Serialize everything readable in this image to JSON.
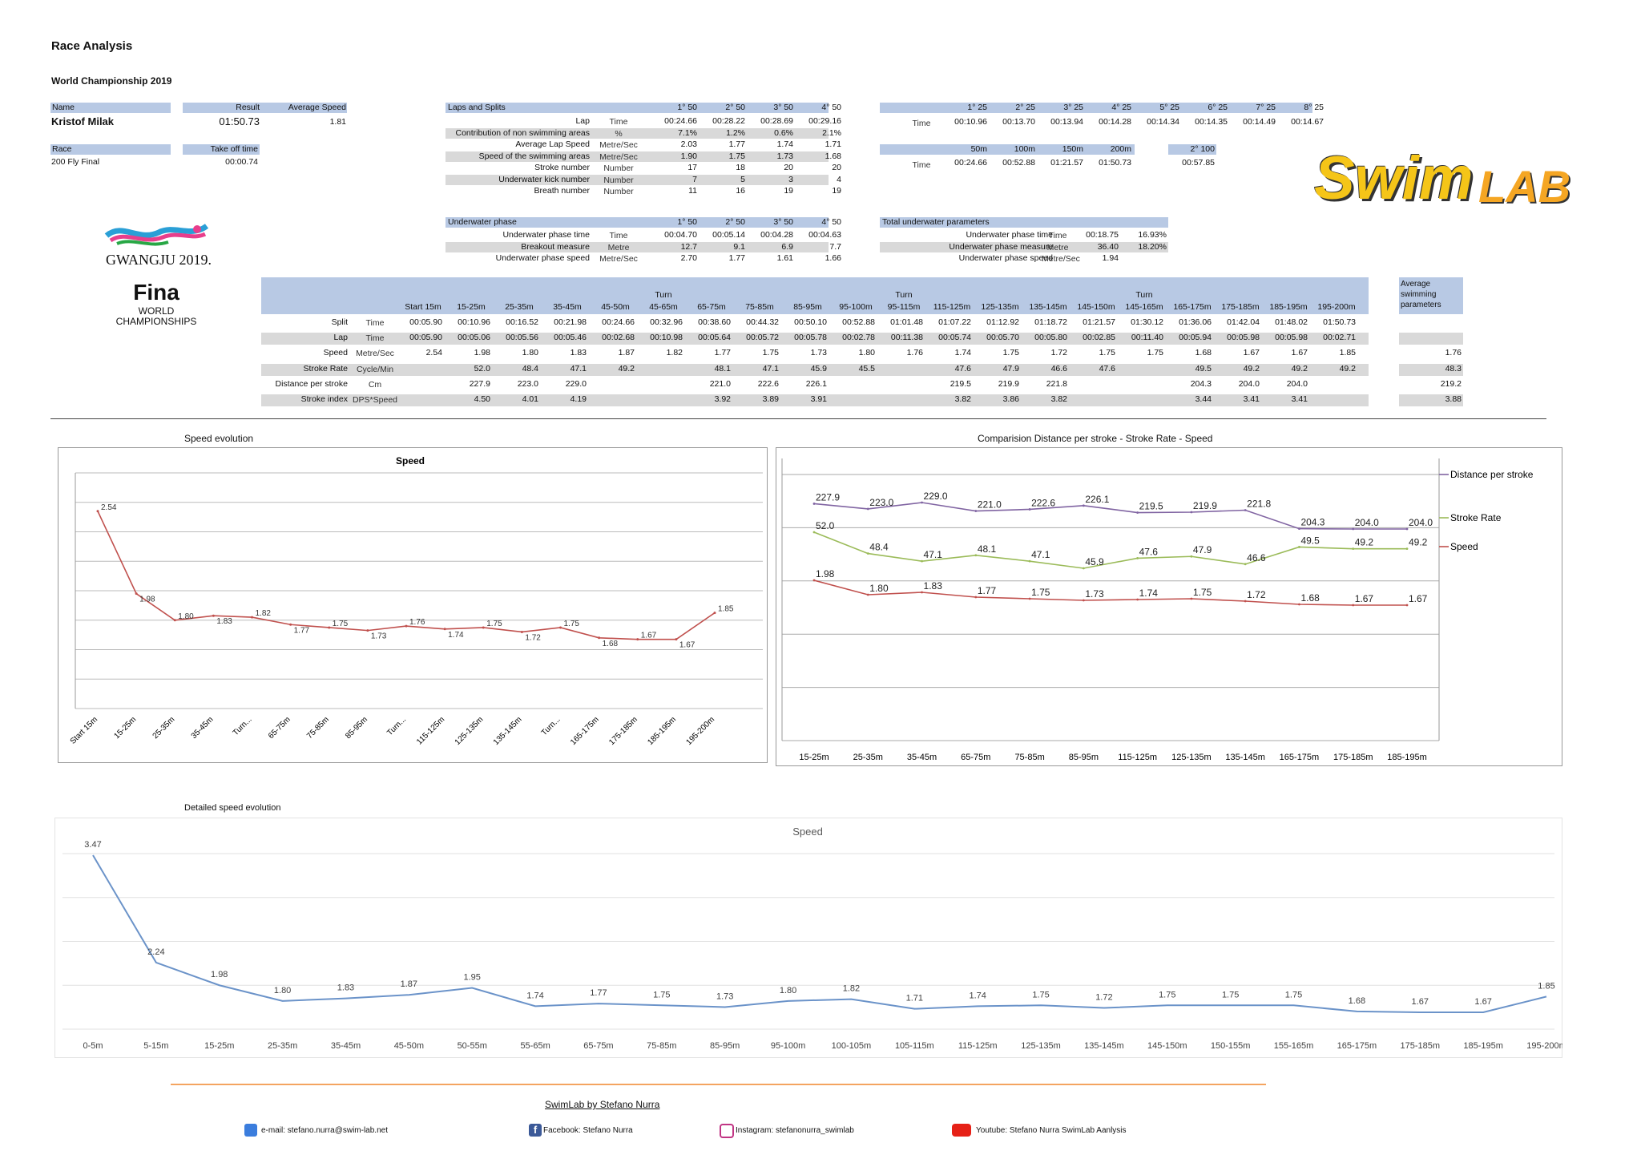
{
  "title": "Race Analysis",
  "subtitle": "World Championship 2019",
  "info": {
    "name_label": "Name",
    "name": "Kristof Milak",
    "result_label": "Result",
    "result": "01:50.73",
    "avg_speed_label": "Average Speed",
    "avg_speed": "1.81",
    "race_label": "Race",
    "race": "200 Fly Final",
    "takeoff_label": "Take off time",
    "takeoff": "00:00.74"
  },
  "laps": {
    "header": "Laps and Splits",
    "cols": [
      "1° 50",
      "2° 50",
      "3° 50",
      "4° 50"
    ],
    "rows": [
      {
        "label": "Lap",
        "unit": "Time",
        "values": [
          "00:24.66",
          "00:28.22",
          "00:28.69",
          "00:29.16"
        ],
        "shade": false
      },
      {
        "label": "Contribution of non swimming areas",
        "unit": "%",
        "values": [
          "7.1%",
          "1.2%",
          "0.6%",
          "2.1%"
        ],
        "shade": true
      },
      {
        "label": "Average Lap Speed",
        "unit": "Metre/Sec",
        "values": [
          "2.03",
          "1.77",
          "1.74",
          "1.71"
        ],
        "shade": false
      },
      {
        "label": "Speed of the swimming areas",
        "unit": "Metre/Sec",
        "values": [
          "1.90",
          "1.75",
          "1.73",
          "1.68"
        ],
        "shade": true
      },
      {
        "label": "Stroke number",
        "unit": "Number",
        "values": [
          "17",
          "18",
          "20",
          "20"
        ],
        "shade": false
      },
      {
        "label": "Underwater kick number",
        "unit": "Number",
        "values": [
          "7",
          "5",
          "3",
          "4"
        ],
        "shade": true
      },
      {
        "label": "Breath number",
        "unit": "Number",
        "values": [
          "11",
          "16",
          "19",
          "19"
        ],
        "shade": false
      }
    ]
  },
  "splits25": {
    "cols": [
      "1° 25",
      "2° 25",
      "3° 25",
      "4° 25",
      "5° 25",
      "6° 25",
      "7° 25",
      "8° 25"
    ],
    "unit": "Time",
    "values": [
      "00:10.96",
      "00:13.70",
      "00:13.94",
      "00:14.28",
      "00:14.34",
      "00:14.35",
      "00:14.49",
      "00:14.67"
    ]
  },
  "splits50": {
    "cols": [
      "50m",
      "100m",
      "150m",
      "200m"
    ],
    "unit": "Time",
    "values": [
      "00:24.66",
      "00:52.88",
      "01:21.57",
      "01:50.73"
    ],
    "second100_label": "2° 100",
    "second100": "00:57.85"
  },
  "underwater": {
    "header": "Underwater phase",
    "cols": [
      "1° 50",
      "2° 50",
      "3° 50",
      "4° 50"
    ],
    "rows": [
      {
        "label": "Underwater phase time",
        "unit": "Time",
        "values": [
          "00:04.70",
          "00:05.14",
          "00:04.28",
          "00:04.63"
        ],
        "shade": false
      },
      {
        "label": "Breakout measure",
        "unit": "Metre",
        "values": [
          "12.7",
          "9.1",
          "6.9",
          "7.7"
        ],
        "shade": true
      },
      {
        "label": "Underwater phase speed",
        "unit": "Metre/Sec",
        "values": [
          "2.70",
          "1.77",
          "1.61",
          "1.66"
        ],
        "shade": false
      }
    ]
  },
  "total_underwater": {
    "header": "Total underwater parameters",
    "rows": [
      {
        "label": "Underwater phase time",
        "unit": "Time",
        "value": "00:18.75",
        "pct": "16.93%",
        "shade": false
      },
      {
        "label": "Underwater phase measure",
        "unit": "Metre",
        "value": "36.40",
        "pct": "18.20%",
        "shade": true
      },
      {
        "label": "Underwater phase speed",
        "unit": "Metre/Sec",
        "value": "1.94",
        "pct": "",
        "shade": false
      }
    ]
  },
  "logos": {
    "gwangju": "GWANGJU 2019.",
    "fina": "Fina",
    "fina_sub1": "WORLD",
    "fina_sub2": "CHAMPIONSHIPS",
    "swim": "Swim",
    "lab": "LAB"
  },
  "main_table": {
    "cols": [
      {
        "top": "",
        "bot": "Start 15m"
      },
      {
        "top": "",
        "bot": "15-25m"
      },
      {
        "top": "",
        "bot": "25-35m"
      },
      {
        "top": "",
        "bot": "35-45m"
      },
      {
        "top": "",
        "bot": "45-50m"
      },
      {
        "top": "Turn",
        "bot": "45-65m"
      },
      {
        "top": "",
        "bot": "65-75m"
      },
      {
        "top": "",
        "bot": "75-85m"
      },
      {
        "top": "",
        "bot": "85-95m"
      },
      {
        "top": "",
        "bot": "95-100m"
      },
      {
        "top": "Turn",
        "bot": "95-115m"
      },
      {
        "top": "",
        "bot": "115-125m"
      },
      {
        "top": "",
        "bot": "125-135m"
      },
      {
        "top": "",
        "bot": "135-145m"
      },
      {
        "top": "",
        "bot": "145-150m"
      },
      {
        "top": "Turn",
        "bot": "145-165m"
      },
      {
        "top": "",
        "bot": "165-175m"
      },
      {
        "top": "",
        "bot": "175-185m"
      },
      {
        "top": "",
        "bot": "185-195m"
      },
      {
        "top": "",
        "bot": "195-200m"
      }
    ],
    "avg_header": [
      "Average",
      "swimming",
      "parameters"
    ],
    "rows": [
      {
        "label": "Split",
        "unit": "Time",
        "shade": false,
        "values": [
          "00:05.90",
          "00:10.96",
          "00:16.52",
          "00:21.98",
          "00:24.66",
          "00:32.96",
          "00:38.60",
          "00:44.32",
          "00:50.10",
          "00:52.88",
          "01:01.48",
          "01:07.22",
          "01:12.92",
          "01:18.72",
          "01:21.57",
          "01:30.12",
          "01:36.06",
          "01:42.04",
          "01:48.02",
          "01:50.73"
        ],
        "avg": ""
      },
      {
        "label": "Lap",
        "unit": "Time",
        "shade": true,
        "values": [
          "00:05.90",
          "00:05.06",
          "00:05.56",
          "00:05.46",
          "00:02.68",
          "00:10.98",
          "00:05.64",
          "00:05.72",
          "00:05.78",
          "00:02.78",
          "00:11.38",
          "00:05.74",
          "00:05.70",
          "00:05.80",
          "00:02.85",
          "00:11.40",
          "00:05.94",
          "00:05.98",
          "00:05.98",
          "00:02.71"
        ],
        "avg": ""
      },
      {
        "label": "Speed",
        "unit": "Metre/Sec",
        "shade": false,
        "values": [
          "2.54",
          "1.98",
          "1.80",
          "1.83",
          "1.87",
          "1.82",
          "1.77",
          "1.75",
          "1.73",
          "1.80",
          "1.76",
          "1.74",
          "1.75",
          "1.72",
          "1.75",
          "1.75",
          "1.68",
          "1.67",
          "1.67",
          "1.85"
        ],
        "avg": "1.76"
      },
      {
        "label": "Stroke Rate",
        "unit": "Cycle/Min",
        "shade": true,
        "values": [
          "",
          "52.0",
          "48.4",
          "47.1",
          "49.2",
          "",
          "48.1",
          "47.1",
          "45.9",
          "45.5",
          "",
          "47.6",
          "47.9",
          "46.6",
          "47.6",
          "",
          "49.5",
          "49.2",
          "49.2",
          "49.2"
        ],
        "avg": "48.3"
      },
      {
        "label": "Distance per stroke",
        "unit": "Cm",
        "shade": false,
        "values": [
          "",
          "227.9",
          "223.0",
          "229.0",
          "",
          "",
          "221.0",
          "222.6",
          "226.1",
          "",
          "",
          "219.5",
          "219.9",
          "221.8",
          "",
          "",
          "204.3",
          "204.0",
          "204.0",
          ""
        ],
        "avg": "219.2"
      },
      {
        "label": "Stroke index",
        "unit": "DPS*Speed",
        "shade": true,
        "values": [
          "",
          "4.50",
          "4.01",
          "4.19",
          "",
          "",
          "3.92",
          "3.89",
          "3.91",
          "",
          "",
          "3.82",
          "3.86",
          "3.82",
          "",
          "",
          "3.44",
          "3.41",
          "3.41",
          ""
        ],
        "avg": "3.88"
      }
    ]
  },
  "chart_data": [
    {
      "type": "line",
      "section_title": "Speed evolution",
      "title": "Speed",
      "categories": [
        "Start 15m",
        "15-25m",
        "25-35m",
        "35-45m",
        "Turn...",
        "65-75m",
        "75-85m",
        "85-95m",
        "Turn...",
        "115-125m",
        "125-135m",
        "135-145m",
        "Turn...",
        "165-175m",
        "175-185m",
        "185-195m",
        "195-200m"
      ],
      "values": [
        2.54,
        1.98,
        1.8,
        1.83,
        1.82,
        1.77,
        1.75,
        1.73,
        1.76,
        1.74,
        1.75,
        1.72,
        1.75,
        1.68,
        1.67,
        1.67,
        1.85
      ],
      "labels": [
        "2.54",
        "1.98",
        "1.80",
        "1.83",
        "1.82",
        "1.77",
        "1.75",
        "1.73",
        "1.76",
        "1.74",
        "1.75",
        "1.72",
        "1.75",
        "1.68",
        "1.67",
        "1.67",
        "1.85"
      ],
      "ylim": [
        1.2,
        2.8
      ],
      "grid": true,
      "color": "#c0504d"
    },
    {
      "type": "line",
      "section_title": "Comparision  Distance per stroke - Stroke Rate - Speed",
      "categories": [
        "15-25m",
        "25-35m",
        "35-45m",
        "65-75m",
        "75-85m",
        "85-95m",
        "115-125m",
        "125-135m",
        "135-145m",
        "165-175m",
        "175-185m",
        "185-195m"
      ],
      "series": [
        {
          "name": "Distance per stroke",
          "values": [
            227.9,
            223.0,
            229.0,
            221.0,
            222.6,
            226.1,
            219.5,
            219.9,
            221.8,
            204.3,
            204.0,
            204.0
          ],
          "labels": [
            "227.9",
            "223.0",
            "229.0",
            "221.0",
            "222.6",
            "226.1",
            "219.5",
            "219.9",
            "221.8",
            "204.3",
            "204.0",
            "204.0"
          ],
          "color": "#8064a2"
        },
        {
          "name": "Stroke Rate",
          "values": [
            52.0,
            48.4,
            47.1,
            48.1,
            47.1,
            45.9,
            47.6,
            47.9,
            46.6,
            49.5,
            49.2,
            49.2
          ],
          "labels": [
            "52.0",
            "48.4",
            "47.1",
            "48.1",
            "47.1",
            "45.9",
            "47.6",
            "47.9",
            "46.6",
            "49.5",
            "49.2",
            "49.2"
          ],
          "color": "#9bbb59"
        },
        {
          "name": "Speed",
          "values": [
            1.98,
            1.8,
            1.83,
            1.77,
            1.75,
            1.73,
            1.74,
            1.75,
            1.72,
            1.68,
            1.67,
            1.67
          ],
          "labels": [
            "1.98",
            "1.80",
            "1.83",
            "1.77",
            "1.75",
            "1.73",
            "1.74",
            "1.75",
            "1.72",
            "1.68",
            "1.67",
            "1.67"
          ],
          "color": "#c0504d"
        }
      ],
      "legend": "right",
      "grid": true
    },
    {
      "type": "line",
      "section_title": "Detailed speed evolution",
      "title": "Speed",
      "categories": [
        "0-5m",
        "5-15m",
        "15-25m",
        "25-35m",
        "35-45m",
        "45-50m",
        "50-55m",
        "55-65m",
        "65-75m",
        "75-85m",
        "85-95m",
        "95-100m",
        "100-105m",
        "105-115m",
        "115-125m",
        "125-135m",
        "135-145m",
        "145-150m",
        "150-155m",
        "155-165m",
        "165-175m",
        "175-185m",
        "185-195m",
        "195-200m"
      ],
      "values": [
        3.47,
        2.24,
        1.98,
        1.8,
        1.83,
        1.87,
        1.95,
        1.74,
        1.77,
        1.75,
        1.73,
        1.8,
        1.82,
        1.71,
        1.74,
        1.75,
        1.72,
        1.75,
        1.75,
        1.75,
        1.68,
        1.67,
        1.67,
        1.85
      ],
      "labels": [
        "3.47",
        "2.24",
        "1.98",
        "1.80",
        "1.83",
        "1.87",
        "1.95",
        "1.74",
        "1.77",
        "1.75",
        "1.73",
        "1.80",
        "1.82",
        "1.71",
        "1.74",
        "1.75",
        "1.72",
        "1.75",
        "1.75",
        "1.75",
        "1.68",
        "1.67",
        "1.67",
        "1.85"
      ],
      "ylim": [
        1.5,
        3.5
      ],
      "grid": true,
      "color": "#6b93c9"
    }
  ],
  "footer": {
    "credit": "SwimLab by Stefano Nurra",
    "email": "e-mail:  stefano.nurra@swim-lab.net",
    "facebook": "Facebook:  Stefano Nurra",
    "instagram": "Instagram:  stefanonurra_swimlab",
    "youtube": "Youtube:  Stefano Nurra SwimLab Aanlysis"
  },
  "colors": {
    "header_blue": "#b8c9e4",
    "shade_grey": "#d9d9d9",
    "orange_rule": "#f4a460"
  }
}
